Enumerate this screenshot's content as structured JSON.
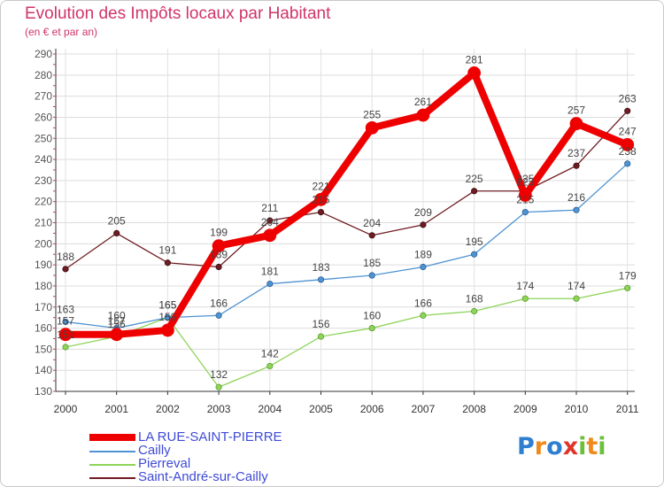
{
  "title": "Evolution des Impôts locaux par Habitant",
  "subtitle": "(en € et par an)",
  "chart_data": {
    "type": "line",
    "title": "Evolution des Impôts locaux par Habitant",
    "subtitle": "(en € et par an)",
    "x": [
      "2000",
      "2001",
      "2002",
      "2003",
      "2004",
      "2005",
      "2006",
      "2007",
      "2008",
      "2009",
      "2010",
      "2011"
    ],
    "ylim": [
      130,
      290
    ],
    "yticks": [
      130,
      140,
      150,
      160,
      170,
      180,
      190,
      200,
      210,
      220,
      230,
      240,
      250,
      260,
      270,
      280,
      290
    ],
    "grid": true,
    "legend_position": "bottom-left",
    "series": [
      {
        "name": "Saint-André-sur-Cailly",
        "color": "#6e1c22",
        "values": [
          188,
          205,
          191,
          189,
          211,
          215,
          204,
          209,
          225,
          225,
          237,
          263
        ]
      },
      {
        "name": "Pierreval",
        "color": "#8fd45a",
        "values": [
          151,
          156,
          165,
          132,
          142,
          156,
          160,
          166,
          168,
          174,
          174,
          179
        ]
      },
      {
        "name": "Cailly",
        "color": "#4f93d2",
        "values": [
          163,
          160,
          165,
          166,
          181,
          183,
          185,
          189,
          195,
          215,
          216,
          238
        ]
      },
      {
        "name": "LA RUE-SAINT-PIERRE",
        "color": "#ee0000",
        "values": [
          157,
          157,
          159,
          199,
          204,
          221,
          255,
          261,
          281,
          223,
          257,
          247
        ]
      }
    ]
  },
  "legend": [
    {
      "label": "LA RUE-SAINT-PIERRE",
      "color": "#ee0000"
    },
    {
      "label": "Cailly",
      "color": "#4f93d2"
    },
    {
      "label": "Pierreval",
      "color": "#8fd45a"
    },
    {
      "label": "Saint-André-sur-Cailly",
      "color": "#6e1c22"
    }
  ],
  "logo": {
    "text": "Proxiti",
    "letters": [
      "P",
      "r",
      "o",
      "x",
      "i",
      "t",
      "i"
    ],
    "colors": [
      "#2f7fd0",
      "#f08a1c",
      "#2f7fd0",
      "#e0352b",
      "#6cbf3a",
      "#f08a1c",
      "#6cbf3a"
    ]
  }
}
